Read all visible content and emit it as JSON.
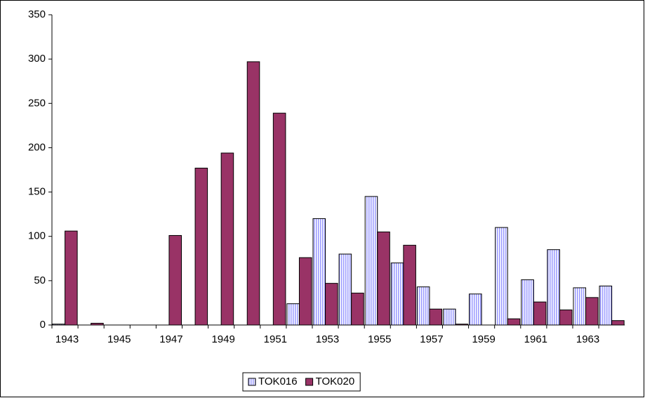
{
  "chart_data": {
    "type": "bar",
    "categories": [
      "1943",
      null,
      "1945",
      null,
      "1947",
      null,
      "1949",
      null,
      "1951",
      null,
      "1953",
      null,
      "1955",
      null,
      "1957",
      null,
      "1959",
      null,
      "1961",
      null,
      "1963",
      null
    ],
    "series": [
      {
        "name": "TOK016",
        "color": "#9999ff",
        "pattern": "vertical-stripes",
        "values": [
          1,
          0,
          0,
          0,
          0,
          0,
          0,
          0,
          0,
          24,
          120,
          80,
          145,
          70,
          43,
          18,
          35,
          110,
          51,
          85,
          42,
          44
        ]
      },
      {
        "name": "TOK020",
        "color": "#993366",
        "values": [
          106,
          2,
          0,
          0,
          101,
          177,
          194,
          297,
          239,
          76,
          47,
          36,
          105,
          90,
          18,
          1,
          0,
          7,
          26,
          17,
          31,
          5
        ]
      }
    ],
    "ylim": [
      0,
      350
    ],
    "yticks": [
      0,
      50,
      100,
      150,
      200,
      250,
      300,
      350
    ],
    "legend": "bottom"
  }
}
